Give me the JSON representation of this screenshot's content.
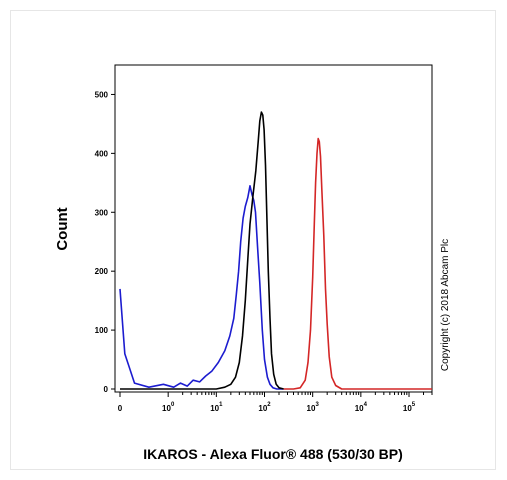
{
  "chart_data": {
    "type": "line",
    "title": "",
    "xlabel": "IKAROS - Alexa Fluor® 488 (530/30 BP)",
    "ylabel": "Count",
    "copyright": "Copyright (c) 2018 Abcam Plc",
    "x_scale": "biexponential-log",
    "xlim": [
      0,
      300000
    ],
    "ylim": [
      0,
      550
    ],
    "grid": false,
    "legend": "none",
    "y_ticks": [
      0,
      100,
      200,
      300,
      400,
      500
    ],
    "y_tick_labels": [
      "0",
      "100",
      "200",
      "300",
      "400",
      "500"
    ],
    "x_ticks": [
      0,
      1,
      10,
      100,
      1000,
      10000,
      100000
    ],
    "x_tick_labels": [
      {
        "base": "0",
        "exp": ""
      },
      {
        "base": "10",
        "exp": "0"
      },
      {
        "base": "10",
        "exp": "1"
      },
      {
        "base": "10",
        "exp": "2"
      },
      {
        "base": "10",
        "exp": "3"
      },
      {
        "base": "10",
        "exp": "4"
      },
      {
        "base": "10",
        "exp": "5"
      }
    ],
    "series": [
      {
        "color": "#1c1ccf",
        "points": [
          [
            0,
            170
          ],
          [
            0.1,
            60
          ],
          [
            0.3,
            10
          ],
          [
            0.6,
            3
          ],
          [
            0.9,
            8
          ],
          [
            1.3,
            3
          ],
          [
            1.8,
            10
          ],
          [
            2.5,
            5
          ],
          [
            3.3,
            15
          ],
          [
            4.5,
            12
          ],
          [
            6,
            22
          ],
          [
            8,
            30
          ],
          [
            11,
            45
          ],
          [
            15,
            65
          ],
          [
            19,
            90
          ],
          [
            23,
            120
          ],
          [
            26,
            160
          ],
          [
            29,
            200
          ],
          [
            32,
            250
          ],
          [
            36,
            290
          ],
          [
            40,
            310
          ],
          [
            45,
            325
          ],
          [
            50,
            345
          ],
          [
            55,
            330
          ],
          [
            60,
            320
          ],
          [
            65,
            300
          ],
          [
            72,
            240
          ],
          [
            80,
            180
          ],
          [
            90,
            100
          ],
          [
            100,
            50
          ],
          [
            115,
            20
          ],
          [
            130,
            8
          ],
          [
            150,
            2
          ],
          [
            180,
            0
          ],
          [
            250,
            0
          ]
        ]
      },
      {
        "color": "#000000",
        "points": [
          [
            0,
            0
          ],
          [
            5,
            0
          ],
          [
            10,
            0
          ],
          [
            15,
            3
          ],
          [
            20,
            8
          ],
          [
            25,
            20
          ],
          [
            30,
            45
          ],
          [
            35,
            90
          ],
          [
            40,
            150
          ],
          [
            45,
            220
          ],
          [
            50,
            280
          ],
          [
            58,
            330
          ],
          [
            66,
            370
          ],
          [
            74,
            420
          ],
          [
            80,
            455
          ],
          [
            86,
            470
          ],
          [
            92,
            465
          ],
          [
            98,
            440
          ],
          [
            105,
            380
          ],
          [
            112,
            290
          ],
          [
            120,
            200
          ],
          [
            130,
            120
          ],
          [
            140,
            60
          ],
          [
            155,
            25
          ],
          [
            175,
            8
          ],
          [
            200,
            2
          ],
          [
            250,
            0
          ]
        ]
      },
      {
        "color": "#d42626",
        "points": [
          [
            250,
            0
          ],
          [
            400,
            0
          ],
          [
            550,
            2
          ],
          [
            700,
            15
          ],
          [
            800,
            45
          ],
          [
            900,
            100
          ],
          [
            1000,
            190
          ],
          [
            1080,
            280
          ],
          [
            1150,
            350
          ],
          [
            1230,
            400
          ],
          [
            1300,
            425
          ],
          [
            1370,
            420
          ],
          [
            1450,
            395
          ],
          [
            1550,
            340
          ],
          [
            1700,
            260
          ],
          [
            1850,
            170
          ],
          [
            2000,
            110
          ],
          [
            2200,
            55
          ],
          [
            2500,
            20
          ],
          [
            3000,
            6
          ],
          [
            4000,
            0
          ],
          [
            8000,
            0
          ],
          [
            30000,
            0
          ],
          [
            300000,
            0
          ]
        ]
      }
    ]
  }
}
